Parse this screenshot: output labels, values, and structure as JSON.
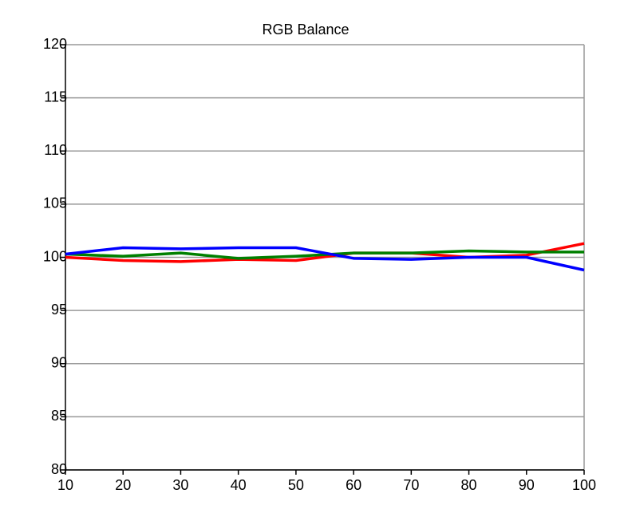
{
  "chart_data": {
    "type": "line",
    "title": "RGB Balance",
    "x": [
      10,
      20,
      30,
      40,
      50,
      60,
      70,
      80,
      90,
      100
    ],
    "series": [
      {
        "color": "#ff0000",
        "values": [
          100,
          99.7,
          99.6,
          99.8,
          99.7,
          100.4,
          100.4,
          100,
          100.2,
          101.3
        ]
      },
      {
        "color": "#008000",
        "values": [
          100.3,
          100.1,
          100.4,
          99.9,
          100.1,
          100.4,
          100.4,
          100.6,
          100.5,
          100.5
        ]
      },
      {
        "color": "#0000ff",
        "values": [
          100.3,
          100.9,
          100.8,
          100.9,
          100.9,
          99.9,
          99.8,
          100,
          100,
          98.8
        ]
      }
    ],
    "xlim": [
      10,
      100
    ],
    "xticks": [
      10,
      20,
      30,
      40,
      50,
      60,
      70,
      80,
      90,
      100
    ],
    "ylim": [
      80,
      120
    ],
    "yticks": [
      80,
      85,
      90,
      95,
      100,
      105,
      110,
      115,
      120
    ],
    "grid": true
  }
}
